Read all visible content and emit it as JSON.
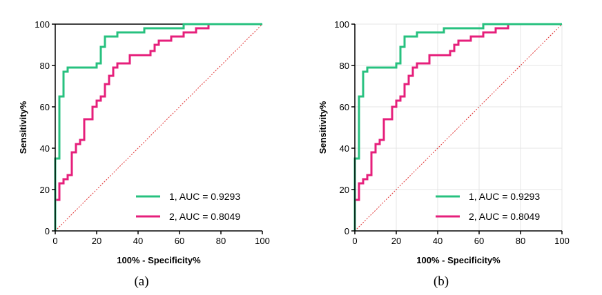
{
  "chart_data": [
    {
      "type": "line",
      "panel": "a",
      "caption": "(a)",
      "xlabel": "100% - Specificity%",
      "ylabel": "Sensitivity%",
      "xlim": [
        0,
        100
      ],
      "ylim": [
        0,
        100
      ],
      "xticks": [
        "0",
        "20",
        "40",
        "60",
        "80",
        "100"
      ],
      "yticks": [
        "0",
        "20",
        "40",
        "60",
        "80",
        "100"
      ],
      "grid": false,
      "legend_position": "bottom-right",
      "series": [
        {
          "name": "1, AUC = 0.9293",
          "color": "#27c17f",
          "x": [
            0,
            0,
            2,
            2,
            4,
            4,
            6,
            6,
            20,
            20,
            22,
            22,
            24,
            24,
            30,
            30,
            43,
            43,
            62,
            62,
            100
          ],
          "y": [
            0,
            35,
            35,
            65,
            65,
            77,
            77,
            79,
            79,
            81,
            81,
            89,
            89,
            94,
            94,
            96,
            96,
            98,
            98,
            100,
            100
          ]
        },
        {
          "name": "2, AUC = 0.8049",
          "color": "#e61f7b",
          "x": [
            0,
            0,
            2,
            2,
            4,
            4,
            6,
            6,
            8,
            8,
            10,
            10,
            12,
            12,
            14,
            14,
            18,
            18,
            20,
            20,
            22,
            22,
            24,
            24,
            26,
            26,
            28,
            28,
            30,
            30,
            36,
            36,
            46,
            46,
            48,
            48,
            50,
            50,
            56,
            56,
            62,
            62,
            68,
            68,
            74,
            74,
            100
          ],
          "y": [
            0,
            15,
            15,
            23,
            23,
            25,
            25,
            27,
            27,
            38,
            38,
            42,
            42,
            44,
            44,
            54,
            54,
            60,
            60,
            63,
            63,
            65,
            65,
            71,
            71,
            75,
            75,
            79,
            79,
            81,
            81,
            85,
            85,
            87,
            87,
            90,
            90,
            92,
            92,
            94,
            94,
            96,
            96,
            98,
            98,
            100,
            100
          ]
        }
      ],
      "reference_line": {
        "x": [
          0,
          100
        ],
        "y": [
          0,
          100
        ],
        "color": "#e03030"
      }
    },
    {
      "type": "line",
      "panel": "b",
      "caption": "(b)",
      "xlabel": "100% - Specificity%",
      "ylabel": "Sensitivity%",
      "xlim": [
        0,
        100
      ],
      "ylim": [
        0,
        100
      ],
      "xticks": [
        "0",
        "20",
        "40",
        "60",
        "80",
        "100"
      ],
      "yticks": [
        "0",
        "20",
        "40",
        "60",
        "80",
        "100"
      ],
      "grid": true,
      "legend_position": "bottom-right",
      "series": [
        {
          "name": "1, AUC = 0.9293",
          "color": "#27c17f",
          "x": [
            0,
            0,
            2,
            2,
            4,
            4,
            6,
            6,
            20,
            20,
            22,
            22,
            24,
            24,
            30,
            30,
            43,
            43,
            62,
            62,
            100
          ],
          "y": [
            0,
            35,
            35,
            65,
            65,
            77,
            77,
            79,
            79,
            81,
            81,
            89,
            89,
            94,
            94,
            96,
            96,
            98,
            98,
            100,
            100
          ]
        },
        {
          "name": "2, AUC = 0.8049",
          "color": "#e61f7b",
          "x": [
            0,
            0,
            2,
            2,
            4,
            4,
            6,
            6,
            8,
            8,
            10,
            10,
            12,
            12,
            14,
            14,
            18,
            18,
            20,
            20,
            22,
            22,
            24,
            24,
            26,
            26,
            28,
            28,
            30,
            30,
            36,
            36,
            46,
            46,
            48,
            48,
            50,
            50,
            56,
            56,
            62,
            62,
            68,
            68,
            74,
            74,
            100
          ],
          "y": [
            0,
            15,
            15,
            23,
            23,
            25,
            25,
            27,
            27,
            38,
            38,
            42,
            42,
            44,
            44,
            54,
            54,
            60,
            60,
            63,
            63,
            65,
            65,
            71,
            71,
            75,
            75,
            79,
            79,
            81,
            81,
            85,
            85,
            87,
            87,
            90,
            90,
            92,
            92,
            94,
            94,
            96,
            96,
            98,
            98,
            100,
            100
          ]
        }
      ],
      "reference_line": {
        "x": [
          0,
          100
        ],
        "y": [
          0,
          100
        ],
        "color": "#e03030"
      }
    }
  ]
}
